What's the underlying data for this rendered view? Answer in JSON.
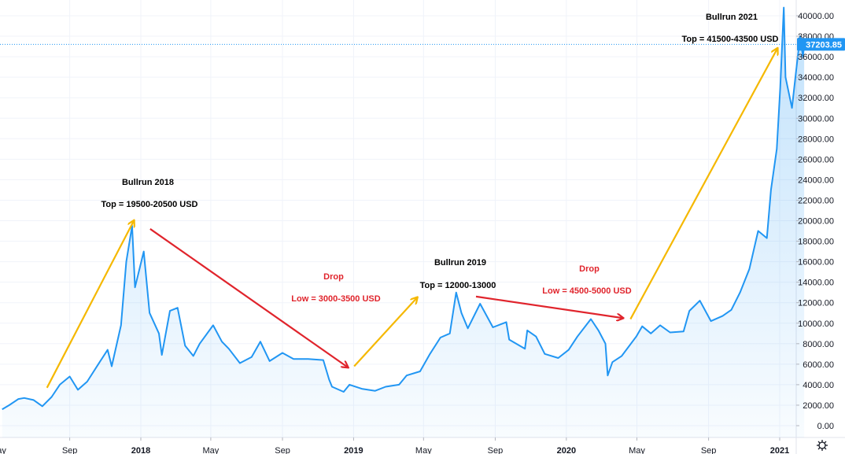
{
  "chart_data": {
    "type": "area",
    "title": "",
    "xlabel": "",
    "ylabel": "",
    "currency": "USD",
    "ylim": [
      0,
      41000
    ],
    "y_ticks": [
      0,
      2000,
      4000,
      6000,
      8000,
      10000,
      12000,
      14000,
      16000,
      18000,
      20000,
      22000,
      24000,
      26000,
      28000,
      30000,
      32000,
      34000,
      36000,
      38000,
      40000
    ],
    "y_tick_labels": [
      "0.00",
      "2000.00",
      "4000.00",
      "6000.00",
      "8000.00",
      "10000.00",
      "12000.00",
      "14000.00",
      "16000.00",
      "18000.00",
      "20000.00",
      "22000.00",
      "24000.00",
      "26000.00",
      "28000.00",
      "30000.00",
      "32000.00",
      "34000.00",
      "36000.00",
      "38000.00",
      "40000.00"
    ],
    "x_ticks": [
      {
        "date": "2017-05-01",
        "label": "May",
        "major": false
      },
      {
        "date": "2017-09-01",
        "label": "Sep",
        "major": false
      },
      {
        "date": "2018-01-01",
        "label": "2018",
        "major": true
      },
      {
        "date": "2018-05-01",
        "label": "May",
        "major": false
      },
      {
        "date": "2018-09-01",
        "label": "Sep",
        "major": false
      },
      {
        "date": "2019-01-01",
        "label": "2019",
        "major": true
      },
      {
        "date": "2019-05-01",
        "label": "May",
        "major": false
      },
      {
        "date": "2019-09-01",
        "label": "Sep",
        "major": false
      },
      {
        "date": "2020-01-01",
        "label": "2020",
        "major": true
      },
      {
        "date": "2020-05-01",
        "label": "May",
        "major": false
      },
      {
        "date": "2020-09-01",
        "label": "Sep",
        "major": false
      },
      {
        "date": "2021-01-01",
        "label": "2021",
        "major": true
      }
    ],
    "x_range": [
      "2017-05-08",
      "2021-02-12"
    ],
    "last_price": 37203.85,
    "last_price_label": "37203.85",
    "series": [
      {
        "color": "#2196f3",
        "points": [
          [
            "2017-05-08",
            1600
          ],
          [
            "2017-05-20",
            2000
          ],
          [
            "2017-06-05",
            2600
          ],
          [
            "2017-06-15",
            2700
          ],
          [
            "2017-07-01",
            2500
          ],
          [
            "2017-07-16",
            1900
          ],
          [
            "2017-08-01",
            2800
          ],
          [
            "2017-08-15",
            4000
          ],
          [
            "2017-09-01",
            4800
          ],
          [
            "2017-09-15",
            3500
          ],
          [
            "2017-10-01",
            4300
          ],
          [
            "2017-10-20",
            6000
          ],
          [
            "2017-11-05",
            7400
          ],
          [
            "2017-11-12",
            5800
          ],
          [
            "2017-11-28",
            9800
          ],
          [
            "2017-12-07",
            16000
          ],
          [
            "2017-12-17",
            19500
          ],
          [
            "2017-12-22",
            13500
          ],
          [
            "2018-01-06",
            17000
          ],
          [
            "2018-01-16",
            11000
          ],
          [
            "2018-02-01",
            9000
          ],
          [
            "2018-02-06",
            6900
          ],
          [
            "2018-02-20",
            11200
          ],
          [
            "2018-03-05",
            11500
          ],
          [
            "2018-03-18",
            7800
          ],
          [
            "2018-04-01",
            6800
          ],
          [
            "2018-04-12",
            8000
          ],
          [
            "2018-05-05",
            9800
          ],
          [
            "2018-05-20",
            8200
          ],
          [
            "2018-06-01",
            7500
          ],
          [
            "2018-06-20",
            6100
          ],
          [
            "2018-07-10",
            6700
          ],
          [
            "2018-07-25",
            8200
          ],
          [
            "2018-08-10",
            6300
          ],
          [
            "2018-09-01",
            7100
          ],
          [
            "2018-09-20",
            6500
          ],
          [
            "2018-10-15",
            6500
          ],
          [
            "2018-11-10",
            6400
          ],
          [
            "2018-11-20",
            4500
          ],
          [
            "2018-11-25",
            3800
          ],
          [
            "2018-12-15",
            3300
          ],
          [
            "2018-12-25",
            4000
          ],
          [
            "2019-01-15",
            3600
          ],
          [
            "2019-02-07",
            3400
          ],
          [
            "2019-02-25",
            3800
          ],
          [
            "2019-03-20",
            4000
          ],
          [
            "2019-04-02",
            4900
          ],
          [
            "2019-04-25",
            5300
          ],
          [
            "2019-05-12",
            7000
          ],
          [
            "2019-05-30",
            8600
          ],
          [
            "2019-06-15",
            9000
          ],
          [
            "2019-06-26",
            13000
          ],
          [
            "2019-07-05",
            11000
          ],
          [
            "2019-07-16",
            9500
          ],
          [
            "2019-08-06",
            11900
          ],
          [
            "2019-08-28",
            9600
          ],
          [
            "2019-09-20",
            10100
          ],
          [
            "2019-09-25",
            8400
          ],
          [
            "2019-10-22",
            7500
          ],
          [
            "2019-10-26",
            9300
          ],
          [
            "2019-11-10",
            8700
          ],
          [
            "2019-11-25",
            7000
          ],
          [
            "2019-12-18",
            6600
          ],
          [
            "2020-01-05",
            7400
          ],
          [
            "2020-01-20",
            8700
          ],
          [
            "2020-02-12",
            10400
          ],
          [
            "2020-02-25",
            9300
          ],
          [
            "2020-03-08",
            8000
          ],
          [
            "2020-03-12",
            4900
          ],
          [
            "2020-03-20",
            6200
          ],
          [
            "2020-04-05",
            6800
          ],
          [
            "2020-04-30",
            8700
          ],
          [
            "2020-05-10",
            9700
          ],
          [
            "2020-05-25",
            9000
          ],
          [
            "2020-06-10",
            9800
          ],
          [
            "2020-06-27",
            9100
          ],
          [
            "2020-07-20",
            9200
          ],
          [
            "2020-07-30",
            11200
          ],
          [
            "2020-08-17",
            12200
          ],
          [
            "2020-09-05",
            10200
          ],
          [
            "2020-09-25",
            10700
          ],
          [
            "2020-10-10",
            11300
          ],
          [
            "2020-10-25",
            13000
          ],
          [
            "2020-11-10",
            15300
          ],
          [
            "2020-11-25",
            19000
          ],
          [
            "2020-12-10",
            18300
          ],
          [
            "2020-12-17",
            23000
          ],
          [
            "2020-12-27",
            27000
          ],
          [
            "2021-01-02",
            33000
          ],
          [
            "2021-01-08",
            40800
          ],
          [
            "2021-01-11",
            34000
          ],
          [
            "2021-01-22",
            31000
          ],
          [
            "2021-01-29",
            34500
          ],
          [
            "2021-02-05",
            38000
          ],
          [
            "2021-02-10",
            36000
          ],
          [
            "2021-02-12",
            37203.85
          ]
        ]
      }
    ],
    "annotations": [
      {
        "lines": [
          "Bullrun 2018",
          "Top = 19500-20500 USD"
        ],
        "color": "#000000"
      },
      {
        "lines": [
          "Drop",
          "Low = 3000-3500 USD"
        ],
        "color": "#e0242c"
      },
      {
        "lines": [
          "Bullrun 2019",
          "Top = 12000-13000"
        ],
        "color": "#000000"
      },
      {
        "lines": [
          "Drop",
          "Low = 4500-5000 USD"
        ],
        "color": "#e0242c"
      },
      {
        "lines": [
          "Bullrun 2021",
          "Top = 41500-43500 USD"
        ],
        "color": "#000000"
      }
    ],
    "arrows": [
      {
        "color": "#f5b800",
        "from": [
          "2017-07-24",
          3700
        ],
        "to": [
          "2017-12-20",
          20000
        ]
      },
      {
        "color": "#e0242c",
        "from": [
          "2018-01-17",
          19200
        ],
        "to": [
          "2018-12-22",
          5700
        ]
      },
      {
        "color": "#f5b800",
        "from": [
          "2019-01-02",
          5800
        ],
        "to": [
          "2019-04-20",
          12500
        ]
      },
      {
        "color": "#e0242c",
        "from": [
          "2019-07-30",
          12600
        ],
        "to": [
          "2020-04-07",
          10500
        ]
      },
      {
        "color": "#f5b800",
        "from": [
          "2020-04-20",
          10400
        ],
        "to": [
          "2020-12-28",
          36800
        ]
      }
    ]
  },
  "ui": {
    "settings_icon": "gear-icon",
    "line_color": "#2196f3",
    "grid_color": "#f0f3fa"
  }
}
